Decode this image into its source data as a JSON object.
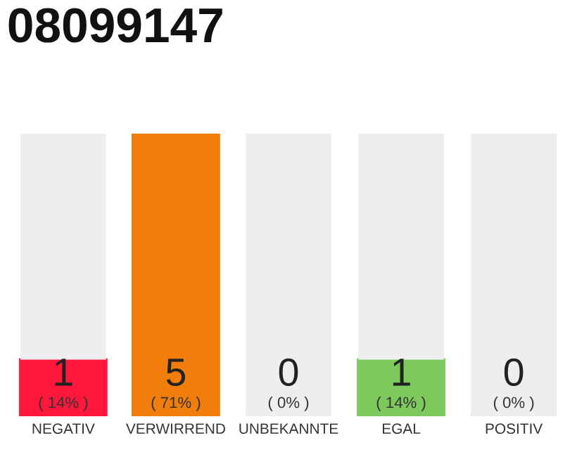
{
  "chart_data": {
    "type": "bar",
    "title": "08099147",
    "stacked": true,
    "categories": [
      "NEGATIV",
      "VERWIRREND",
      "UNBEKANNTE",
      "EGAL",
      "POSITIV"
    ],
    "series": [
      {
        "colors": [
          "#ff173c",
          "#f07d0c",
          "#6a9be0",
          "#7dc95e",
          "#2aa84a"
        ],
        "values": [
          1,
          5,
          0,
          1,
          0
        ],
        "value_labels": [
          "1\n( 14% )",
          "5\n( 71% )",
          "0\n( 0% )",
          "1\n( 14% )",
          "0\n( 0% )"
        ]
      },
      {
        "color": "#eeeeee",
        "values": [
          4,
          0,
          5,
          4,
          5
        ]
      }
    ],
    "ylim": [
      0,
      5
    ],
    "tick_labels": "x",
    "grid": false,
    "legend": false
  }
}
